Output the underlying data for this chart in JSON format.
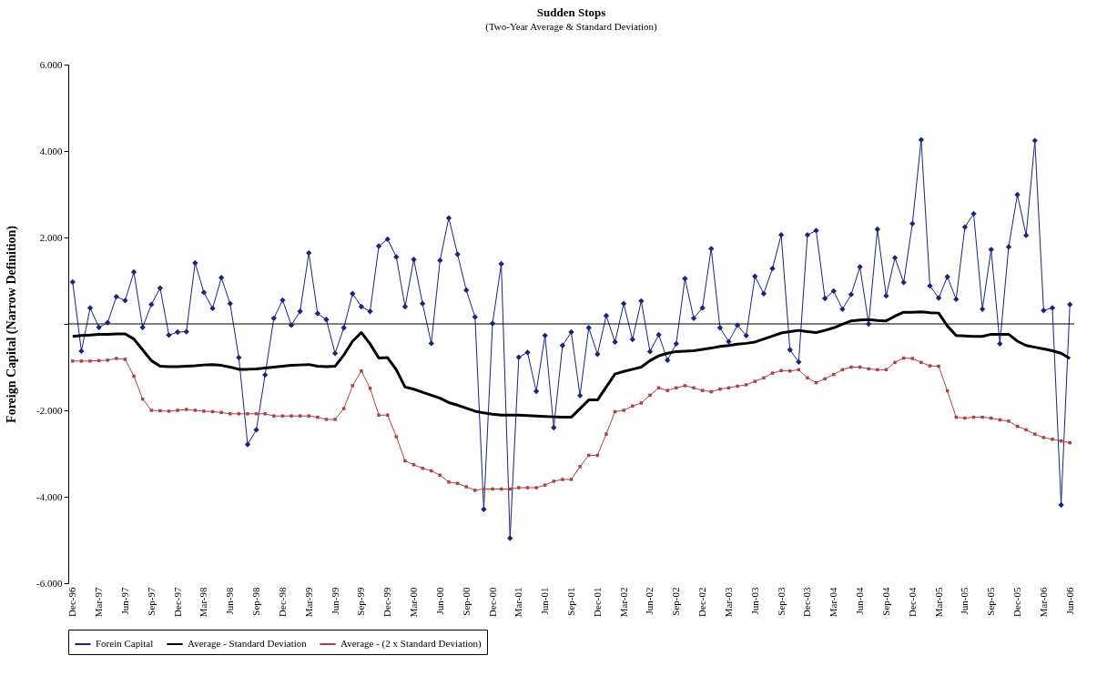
{
  "chart_data": {
    "type": "line",
    "title": "Sudden Stops",
    "subtitle": "(Two-Year Average & Standard Deviation)",
    "ylabel": "Foreign Capital (Narrow Definition)",
    "categories": [
      "Dec-96",
      null,
      null,
      "Mar-97",
      null,
      null,
      "Jun-97",
      null,
      null,
      "Sep-97",
      null,
      null,
      "Dec-97",
      null,
      null,
      "Mar-98",
      null,
      null,
      "Jun-98",
      null,
      null,
      "Sep-98",
      null,
      null,
      "Dec-98",
      null,
      null,
      "Mar-99",
      null,
      null,
      "Jun-99",
      null,
      null,
      "Sep-99",
      null,
      null,
      "Dec-99",
      null,
      null,
      "Mar-00",
      null,
      null,
      "Jun-00",
      null,
      null,
      "Sep-00",
      null,
      null,
      "Dec-00",
      null,
      null,
      "Mar-01",
      null,
      null,
      "Jun-01",
      null,
      null,
      "Sep-01",
      null,
      null,
      "Dec-01",
      null,
      null,
      "Mar-02",
      null,
      null,
      "Jun-02",
      null,
      null,
      "Sep-02",
      null,
      null,
      "Dec-02",
      null,
      null,
      "Mar-03",
      null,
      null,
      "Jun-03",
      null,
      null,
      "Sep-03",
      null,
      null,
      "Dec-03",
      null,
      null,
      "Mar-04",
      null,
      null,
      "Jun-04",
      null,
      null,
      "Sep-04",
      null,
      null,
      "Dec-04",
      null,
      null,
      "Mar-05",
      null,
      null,
      "Jun-05",
      null,
      null,
      "Sep-05",
      null,
      null,
      "Dec-05",
      null,
      null,
      "Mar-06",
      null,
      null,
      "Jun-06"
    ],
    "ylim": [
      -6,
      6
    ],
    "yticks": [
      {
        "value": -6,
        "label": "-6.000"
      },
      {
        "value": -4,
        "label": "-4.000"
      },
      {
        "value": -2,
        "label": "-2.000"
      },
      {
        "value": 0,
        "label": null
      },
      {
        "value": 2,
        "label": "2.000"
      },
      {
        "value": 4,
        "label": "4.000"
      },
      {
        "value": 6,
        "label": "6.000"
      }
    ],
    "grid": false,
    "legend": "bottom",
    "ref_lines": [
      {
        "axis": "y",
        "value": 0,
        "color": "#000000"
      }
    ],
    "series": [
      {
        "name": "Forein Capital",
        "color": "#1c2280",
        "marker": "diamond",
        "values": [
          0.97,
          -0.63,
          0.37,
          -0.08,
          0.03,
          0.63,
          0.54,
          1.2,
          -0.08,
          0.45,
          0.83,
          -0.26,
          -0.19,
          -0.18,
          1.41,
          0.73,
          0.36,
          1.07,
          0.47,
          -0.78,
          -2.79,
          -2.45,
          -1.18,
          0.13,
          0.55,
          -0.03,
          0.29,
          1.64,
          0.24,
          0.1,
          -0.68,
          -0.09,
          0.7,
          0.4,
          0.29,
          1.8,
          1.96,
          1.55,
          0.4,
          1.49,
          0.47,
          -0.45,
          1.47,
          2.45,
          1.61,
          0.78,
          0.16,
          -4.29,
          0.01,
          1.39,
          -4.96,
          -0.77,
          -0.66,
          -1.56,
          -0.27,
          -2.4,
          -0.5,
          -0.19,
          -1.66,
          -0.09,
          -0.7,
          0.19,
          -0.42,
          0.47,
          -0.36,
          0.53,
          -0.64,
          -0.25,
          -0.84,
          -0.46,
          1.05,
          0.13,
          0.37,
          1.74,
          -0.09,
          -0.41,
          -0.03,
          -0.27,
          1.1,
          0.7,
          1.28,
          2.06,
          -0.6,
          -0.88,
          2.06,
          2.16,
          0.59,
          0.76,
          0.34,
          0.68,
          1.32,
          0.0,
          2.19,
          0.65,
          1.53,
          0.96,
          2.32,
          4.26,
          0.88,
          0.6,
          1.09,
          0.57,
          2.24,
          2.55,
          0.34,
          1.72,
          -0.46,
          1.78,
          2.99,
          2.05,
          4.24,
          0.31,
          0.37,
          -4.19,
          0.45
        ]
      },
      {
        "name": "Average - Standard Deviation",
        "color": "#000000",
        "marker": "none",
        "values": [
          -0.29,
          -0.27,
          -0.26,
          -0.24,
          -0.24,
          -0.23,
          -0.23,
          -0.35,
          -0.6,
          -0.85,
          -0.98,
          -0.99,
          -0.99,
          -0.98,
          -0.97,
          -0.95,
          -0.94,
          -0.96,
          -1.0,
          -1.05,
          -1.05,
          -1.04,
          -1.02,
          -1.0,
          -0.98,
          -0.96,
          -0.95,
          -0.94,
          -0.98,
          -0.99,
          -0.98,
          -0.72,
          -0.4,
          -0.2,
          -0.46,
          -0.79,
          -0.78,
          -1.06,
          -1.46,
          -1.51,
          -1.58,
          -1.65,
          -1.72,
          -1.82,
          -1.88,
          -1.95,
          -2.02,
          -2.06,
          -2.09,
          -2.11,
          -2.11,
          -2.11,
          -2.12,
          -2.13,
          -2.14,
          -2.15,
          -2.16,
          -2.16,
          -1.96,
          -1.76,
          -1.76,
          -1.46,
          -1.16,
          -1.1,
          -1.05,
          -1.0,
          -0.85,
          -0.74,
          -0.68,
          -0.64,
          -0.63,
          -0.62,
          -0.59,
          -0.56,
          -0.52,
          -0.5,
          -0.47,
          -0.45,
          -0.42,
          -0.35,
          -0.28,
          -0.21,
          -0.18,
          -0.15,
          -0.18,
          -0.2,
          -0.15,
          -0.09,
          -0.01,
          0.07,
          0.09,
          0.1,
          0.08,
          0.07,
          0.18,
          0.27,
          0.27,
          0.28,
          0.26,
          0.25,
          -0.05,
          -0.27,
          -0.28,
          -0.29,
          -0.29,
          -0.24,
          -0.24,
          -0.24,
          -0.4,
          -0.5,
          -0.54,
          -0.58,
          -0.62,
          -0.68,
          -0.8
        ]
      },
      {
        "name": "Average - (2 x Standard Deviation)",
        "color": "#b04040",
        "marker": "square",
        "values": [
          -0.86,
          -0.86,
          -0.86,
          -0.85,
          -0.84,
          -0.8,
          -0.82,
          -1.21,
          -1.74,
          -2.0,
          -2.01,
          -2.02,
          -2.0,
          -1.98,
          -2.0,
          -2.02,
          -2.03,
          -2.05,
          -2.08,
          -2.08,
          -2.08,
          -2.08,
          -2.08,
          -2.13,
          -2.13,
          -2.13,
          -2.13,
          -2.13,
          -2.16,
          -2.21,
          -2.21,
          -1.96,
          -1.43,
          -1.09,
          -1.49,
          -2.11,
          -2.11,
          -2.61,
          -3.17,
          -3.26,
          -3.34,
          -3.4,
          -3.5,
          -3.66,
          -3.69,
          -3.77,
          -3.85,
          -3.82,
          -3.82,
          -3.82,
          -3.82,
          -3.79,
          -3.79,
          -3.79,
          -3.73,
          -3.64,
          -3.6,
          -3.6,
          -3.3,
          -3.04,
          -3.04,
          -2.55,
          -2.03,
          -2.0,
          -1.9,
          -1.83,
          -1.65,
          -1.48,
          -1.54,
          -1.48,
          -1.43,
          -1.48,
          -1.54,
          -1.57,
          -1.51,
          -1.48,
          -1.44,
          -1.41,
          -1.33,
          -1.25,
          -1.14,
          -1.08,
          -1.09,
          -1.06,
          -1.25,
          -1.36,
          -1.27,
          -1.17,
          -1.06,
          -1.0,
          -1.0,
          -1.04,
          -1.06,
          -1.06,
          -0.89,
          -0.79,
          -0.8,
          -0.89,
          -0.97,
          -0.98,
          -1.55,
          -2.16,
          -2.18,
          -2.16,
          -2.16,
          -2.18,
          -2.22,
          -2.25,
          -2.37,
          -2.45,
          -2.55,
          -2.63,
          -2.67,
          -2.71,
          -2.75
        ]
      }
    ]
  }
}
